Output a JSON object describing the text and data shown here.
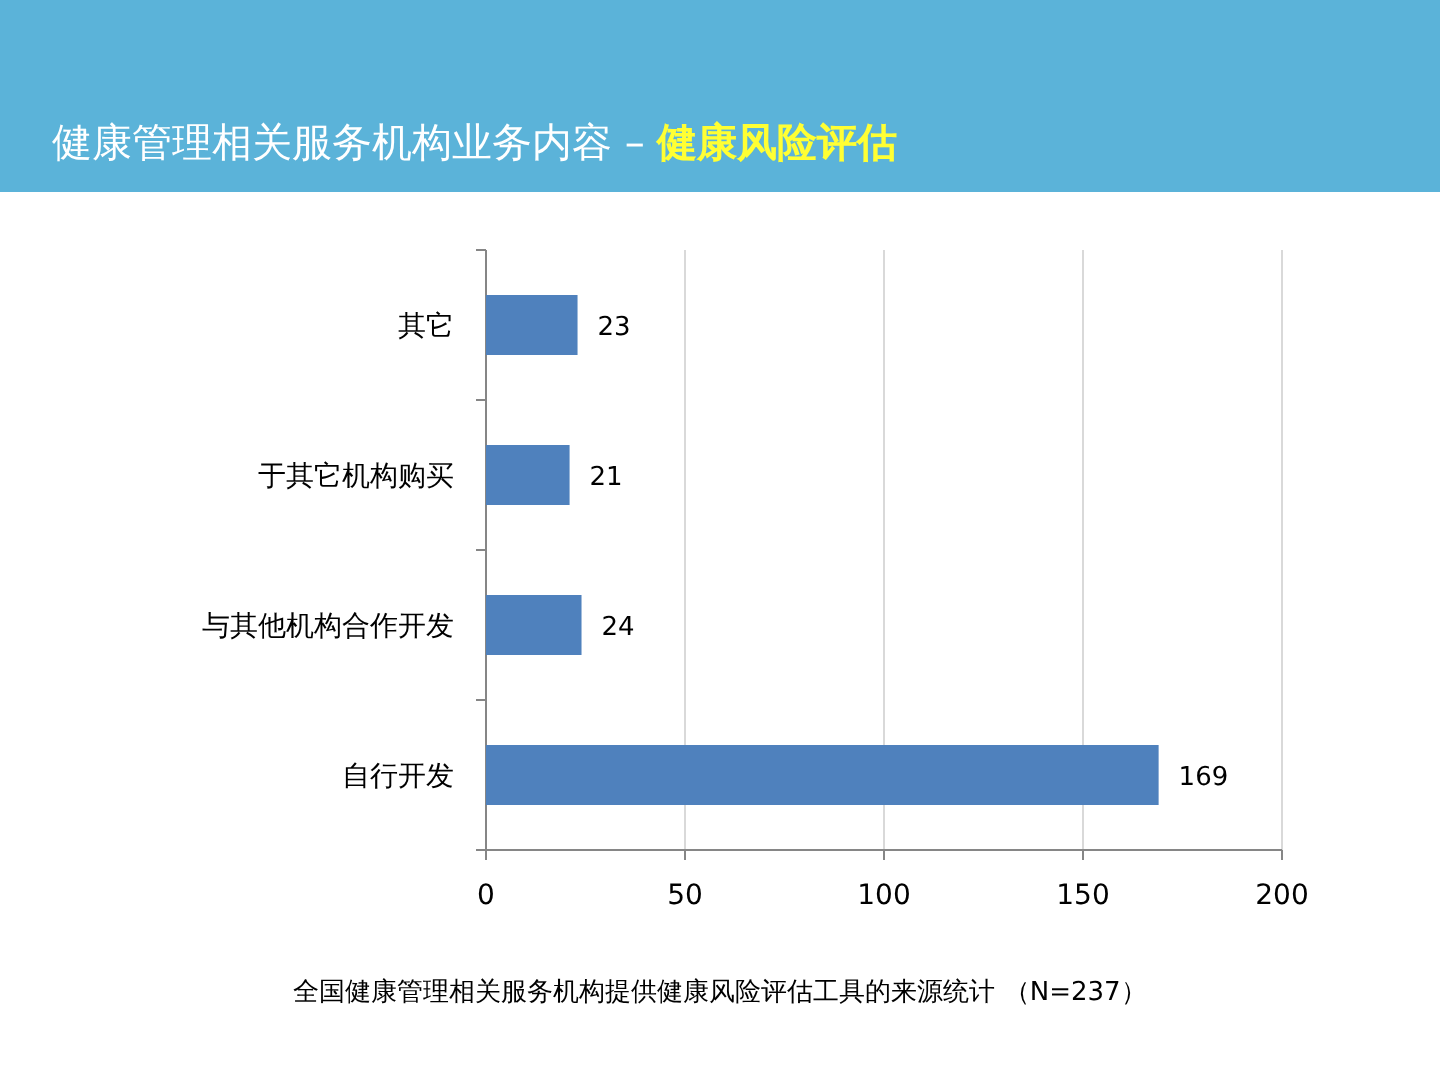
{
  "chart_data": {
    "type": "bar",
    "orientation": "horizontal",
    "title": "健康管理相关服务机构业务内容 –",
    "subtitle": "健康风险评估",
    "categories": [
      "其它",
      "于其它机构购买",
      "与其他机构合作开发",
      "自行开发"
    ],
    "values": [
      23,
      21,
      24,
      169
    ],
    "color": "#4f81bd",
    "xlim": [
      0,
      200
    ],
    "xticks": [
      0,
      50,
      100,
      150,
      200
    ],
    "grid": "x",
    "data_labels": true,
    "annotations": [
      "全国健康管理相关服务机构提供健康风险评估工具的来源统计 （N=237）"
    ]
  }
}
